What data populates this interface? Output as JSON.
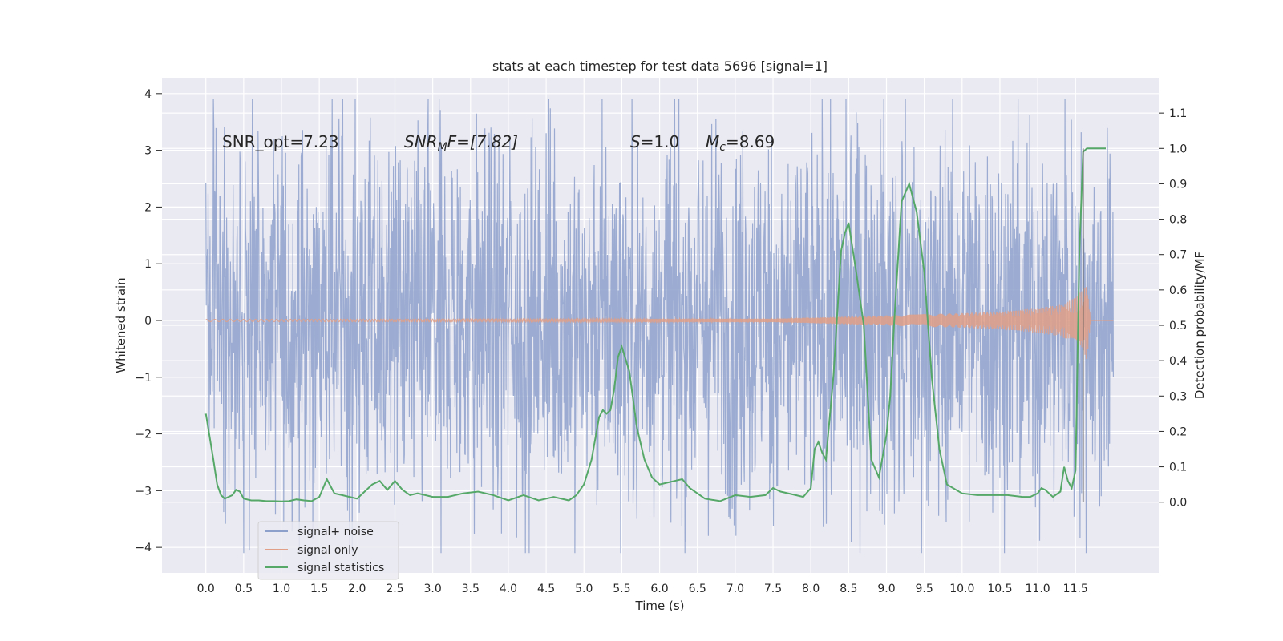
{
  "chart_data": {
    "type": "line",
    "title": "stats at each timestep for test data 5696 [signal=1]",
    "xlabel": "Time (s)",
    "ylabel": "Whitened strain",
    "y2label": "Detection probability/MF",
    "xlim": [
      -0.58,
      12.6
    ],
    "ylim": [
      -4.45,
      4.28
    ],
    "y2lim": [
      -0.2,
      1.2
    ],
    "xticks": [
      "0.0",
      "0.5",
      "1.0",
      "1.5",
      "2.0",
      "2.5",
      "3.0",
      "3.5",
      "4.0",
      "4.5",
      "5.0",
      "5.5",
      "6.0",
      "6.5",
      "7.0",
      "7.5",
      "8.0",
      "8.5",
      "9.0",
      "9.5",
      "10.0",
      "10.5",
      "11.0",
      "11.5"
    ],
    "yticks": [
      "4",
      "3",
      "2",
      "1",
      "0",
      "−1",
      "−2",
      "−3",
      "−4"
    ],
    "y2ticks": [
      "1.1",
      "1.0",
      "0.9",
      "0.8",
      "0.7",
      "0.6",
      "0.5",
      "0.4",
      "0.3",
      "0.2",
      "0.1",
      "0.0"
    ],
    "grid": true,
    "legend_position": "lower-left",
    "annotations": {
      "snr_opt": "SNR_opt=7.23",
      "snr_mf_main": "SNR",
      "snr_mf_sub": "M",
      "snr_mf_rest": "F=[7.82]",
      "s_main": "S",
      "s_rest": "=1.0",
      "mc_main": "M",
      "mc_sub": "c",
      "mc_rest": "=8.69"
    },
    "series": [
      {
        "name": "signal+ noise",
        "color": "#8da0cb",
        "description_values": "noise band roughly between -2.2 and 2.5 with spikes to about ±4",
        "x_range": [
          0.0,
          12.0
        ],
        "typical_amplitude": 2.0,
        "peak_values": [
          3.9,
          -4.1
        ]
      },
      {
        "name": "signal only",
        "color": "#e19f87",
        "chirp_x": [
          0.0,
          7.5,
          8.0,
          8.5,
          9.0,
          9.5,
          10.0,
          10.5,
          11.0,
          11.3,
          11.5,
          11.6,
          11.65,
          11.7,
          12.0
        ],
        "chirp_amplitude": [
          0.02,
          0.03,
          0.05,
          0.07,
          0.09,
          0.11,
          0.13,
          0.16,
          0.22,
          0.28,
          0.4,
          0.55,
          0.7,
          0.0,
          0.0
        ]
      },
      {
        "name": "signal statistics",
        "color": "#55a868",
        "axis": "right",
        "x": [
          0.0,
          0.1,
          0.15,
          0.2,
          0.25,
          0.3,
          0.35,
          0.4,
          0.45,
          0.5,
          0.6,
          0.7,
          0.8,
          0.9,
          1.0,
          1.1,
          1.2,
          1.3,
          1.4,
          1.5,
          1.55,
          1.6,
          1.7,
          1.8,
          1.9,
          2.0,
          2.1,
          2.2,
          2.3,
          2.4,
          2.5,
          2.6,
          2.7,
          2.8,
          3.0,
          3.2,
          3.4,
          3.6,
          3.8,
          4.0,
          4.2,
          4.4,
          4.6,
          4.8,
          4.9,
          5.0,
          5.1,
          5.2,
          5.25,
          5.3,
          5.35,
          5.4,
          5.45,
          5.5,
          5.6,
          5.7,
          5.8,
          5.9,
          6.0,
          6.1,
          6.2,
          6.3,
          6.4,
          6.6,
          6.8,
          7.0,
          7.2,
          7.4,
          7.5,
          7.6,
          7.8,
          7.9,
          8.0,
          8.05,
          8.1,
          8.15,
          8.2,
          8.3,
          8.4,
          8.45,
          8.5,
          8.6,
          8.7,
          8.8,
          8.9,
          9.0,
          9.05,
          9.1,
          9.2,
          9.3,
          9.4,
          9.5,
          9.6,
          9.7,
          9.8,
          10.0,
          10.2,
          10.4,
          10.6,
          10.8,
          10.9,
          11.0,
          11.05,
          11.1,
          11.2,
          11.3,
          11.35,
          11.4,
          11.45,
          11.5,
          11.55,
          11.6,
          11.65,
          11.7,
          11.8,
          11.9
        ],
        "y": [
          0.25,
          0.12,
          0.05,
          0.02,
          0.01,
          0.015,
          0.02,
          0.035,
          0.03,
          0.01,
          0.005,
          0.005,
          0.003,
          0.003,
          0.002,
          0.003,
          0.008,
          0.005,
          0.003,
          0.015,
          0.04,
          0.065,
          0.025,
          0.02,
          0.015,
          0.01,
          0.03,
          0.05,
          0.06,
          0.035,
          0.06,
          0.035,
          0.02,
          0.025,
          0.015,
          0.015,
          0.025,
          0.03,
          0.02,
          0.005,
          0.02,
          0.005,
          0.015,
          0.005,
          0.02,
          0.05,
          0.12,
          0.24,
          0.26,
          0.25,
          0.26,
          0.32,
          0.41,
          0.44,
          0.37,
          0.21,
          0.12,
          0.07,
          0.05,
          0.055,
          0.06,
          0.065,
          0.04,
          0.01,
          0.003,
          0.02,
          0.015,
          0.02,
          0.04,
          0.03,
          0.02,
          0.015,
          0.04,
          0.15,
          0.17,
          0.14,
          0.12,
          0.36,
          0.71,
          0.76,
          0.79,
          0.65,
          0.5,
          0.12,
          0.07,
          0.19,
          0.3,
          0.5,
          0.85,
          0.9,
          0.82,
          0.65,
          0.35,
          0.15,
          0.05,
          0.025,
          0.02,
          0.02,
          0.02,
          0.015,
          0.015,
          0.025,
          0.04,
          0.035,
          0.015,
          0.03,
          0.1,
          0.06,
          0.04,
          0.09,
          0.7,
          0.99,
          1.0,
          1.0,
          1.0,
          1.0
        ]
      }
    ],
    "marker_line_x": 11.6
  }
}
